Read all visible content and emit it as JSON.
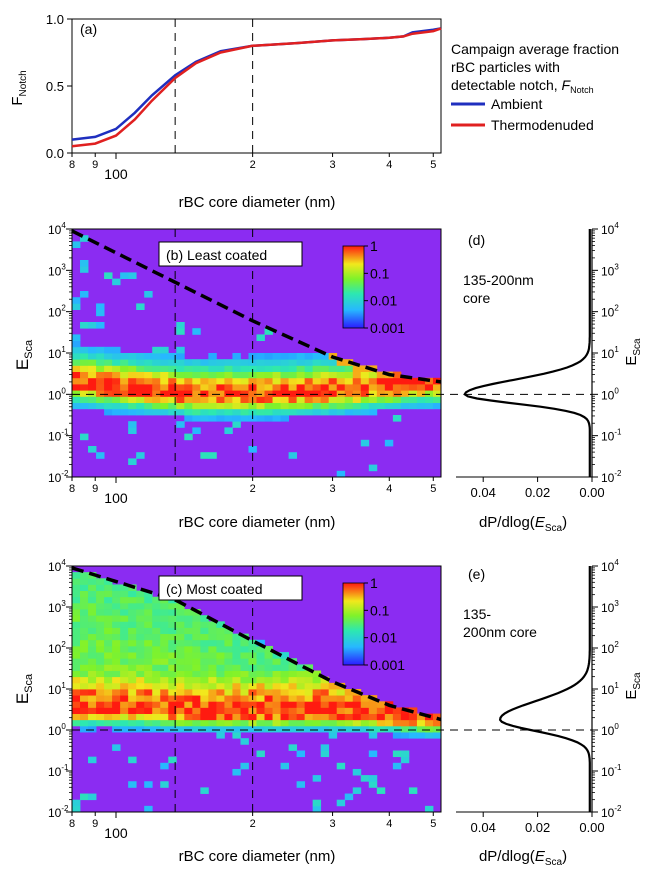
{
  "chart_data": [
    {
      "panel_label": "(a)",
      "type": "line",
      "ylabel_main": "F",
      "ylabel_sub": "Notch",
      "xlabel": "rBC core diameter (nm)",
      "x_scale": "log",
      "xlim": [
        80,
        520
      ],
      "ylim": [
        0,
        1
      ],
      "y_ticks": [
        "0.0",
        "0.5",
        "1.0"
      ],
      "x_ticks": [
        {
          "value": 80,
          "label": "8"
        },
        {
          "value": 90,
          "label": "9"
        },
        {
          "value": 100,
          "label": "100"
        },
        {
          "value": 200,
          "label": "2"
        },
        {
          "value": 300,
          "label": "3"
        },
        {
          "value": 400,
          "label": "4"
        },
        {
          "value": 500,
          "label": "5"
        }
      ],
      "vlines": [
        135,
        200
      ],
      "legend": {
        "title_lines": [
          "Campaign average fraction",
          "rBC particles with",
          "detectable notch, "
        ],
        "title_symbol": "F",
        "title_symbol_sub": "Notch",
        "position": "right"
      },
      "series": [
        {
          "name": "Ambient",
          "color": "#1f2fbf",
          "x": [
            80,
            90,
            100,
            110,
            120,
            135,
            150,
            170,
            200,
            250,
            300,
            350,
            400,
            430,
            450,
            500,
            520
          ],
          "y": [
            0.1,
            0.12,
            0.18,
            0.3,
            0.43,
            0.58,
            0.68,
            0.76,
            0.8,
            0.82,
            0.84,
            0.85,
            0.86,
            0.87,
            0.9,
            0.92,
            0.93
          ]
        },
        {
          "name": "Thermodenuded",
          "color": "#e02020",
          "x": [
            80,
            90,
            100,
            110,
            120,
            135,
            150,
            170,
            200,
            250,
            300,
            350,
            400,
            430,
            450,
            500,
            520
          ],
          "y": [
            0.05,
            0.07,
            0.13,
            0.25,
            0.39,
            0.56,
            0.67,
            0.75,
            0.8,
            0.82,
            0.84,
            0.85,
            0.86,
            0.87,
            0.89,
            0.91,
            0.93
          ]
        }
      ]
    },
    {
      "panel_label": "(b) Least coated",
      "type": "heatmap",
      "ylabel_main": "E",
      "ylabel_sub": "Sca",
      "xlabel": "rBC core diameter (nm)",
      "x_scale": "log",
      "y_scale": "log",
      "xlim": [
        80,
        520
      ],
      "ylim": [
        0.01,
        10000
      ],
      "y_tick_exponents": [
        -2,
        -1,
        0,
        1,
        2,
        3,
        4
      ],
      "colorbar": {
        "scale": "log",
        "range": [
          0.001,
          1
        ],
        "tick_labels": [
          "1",
          "0.1",
          "0.01",
          "0.001"
        ]
      },
      "dashed_limit_curve": {
        "x": [
          80,
          200,
          300,
          400,
          520
        ],
        "y": [
          9000,
          60,
          8,
          3,
          2
        ]
      },
      "vlines": [
        135,
        200
      ],
      "hline": 1,
      "ridge": {
        "x": [
          80,
          100,
          150,
          200,
          300,
          400,
          520
        ],
        "y": [
          2,
          1.5,
          1.0,
          1.0,
          1.2,
          1.6,
          2.0
        ]
      }
    },
    {
      "panel_label": "(d)",
      "type": "line",
      "annotation_lines": [
        "135-200nm",
        "core"
      ],
      "xlabel_main": "dP/dlog(",
      "xlabel_symbol": "E",
      "xlabel_sub": "Sca",
      "xlabel_close": ")",
      "ylabel_main": "E",
      "ylabel_sub": "Sca",
      "xlim": [
        0.05,
        0
      ],
      "ylim": [
        0.01,
        10000
      ],
      "y_scale": "log",
      "x_ticks": [
        "0.04",
        "0.02",
        "0.00"
      ],
      "y_tick_exponents": [
        -2,
        -1,
        0,
        1,
        2,
        3,
        4
      ],
      "hline": 1,
      "series": [
        {
          "peak_value": 0.046,
          "peak_at": 1.0,
          "log10_width": 0.22
        }
      ]
    },
    {
      "panel_label": "(c) Most coated",
      "type": "heatmap",
      "ylabel_main": "E",
      "ylabel_sub": "Sca",
      "xlabel": "rBC core diameter (nm)",
      "x_scale": "log",
      "y_scale": "log",
      "xlim": [
        80,
        520
      ],
      "ylim": [
        0.01,
        10000
      ],
      "y_tick_exponents": [
        -2,
        -1,
        0,
        1,
        2,
        3,
        4
      ],
      "colorbar": {
        "scale": "log",
        "range": [
          0.001,
          1
        ],
        "tick_labels": [
          "1",
          "0.1",
          "0.01",
          "0.001"
        ]
      },
      "dashed_limit_curve": {
        "x": [
          80,
          135,
          200,
          300,
          400,
          520
        ],
        "y": [
          9000,
          1500,
          150,
          15,
          4,
          1.8
        ]
      },
      "vlines": [
        135,
        200
      ],
      "hline": 1,
      "ridge": {
        "x": [
          80,
          100,
          150,
          200,
          300,
          400,
          520
        ],
        "y": [
          3,
          3,
          2.5,
          2.5,
          2.5,
          2.2,
          1.8
        ]
      }
    },
    {
      "panel_label": "(e)",
      "type": "line",
      "annotation_lines": [
        "135-",
        "200nm core"
      ],
      "xlabel_main": "dP/dlog(",
      "xlabel_symbol": "E",
      "xlabel_sub": "Sca",
      "xlabel_close": ")",
      "ylabel_main": "E",
      "ylabel_sub": "Sca",
      "xlim": [
        0.05,
        0
      ],
      "ylim": [
        0.01,
        10000
      ],
      "y_scale": "log",
      "x_ticks": [
        "0.04",
        "0.02",
        "0.00"
      ],
      "y_tick_exponents": [
        -2,
        -1,
        0,
        1,
        2,
        3,
        4
      ],
      "hline": 1,
      "series": [
        {
          "peak_value": 0.033,
          "peak_at": 1.8,
          "log10_width": 0.28
        }
      ]
    }
  ]
}
